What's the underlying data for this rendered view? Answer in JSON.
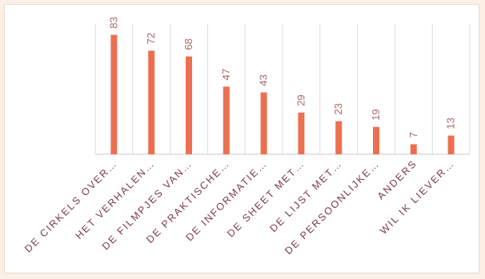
{
  "chart_data": {
    "type": "bar",
    "title": "",
    "xlabel": "",
    "ylabel": "",
    "ylim": [
      0,
      90
    ],
    "grid": "vertical category separators",
    "legend": "none",
    "categories": [
      "DE CIRKELS OVER…",
      "HET VERHALEN…",
      "DE FILMPJES VAN…",
      "DE PRAKTISCHE…",
      "DE INFORMATIE…",
      "DE SHEET MET…",
      "DE LIJST MET…",
      "DE PERSOONLIJKE…",
      "ANDERS",
      "WIL IK LIEVER…"
    ],
    "values": [
      83,
      72,
      68,
      47,
      43,
      29,
      23,
      19,
      7,
      13
    ],
    "colors": {
      "bar": "#ec6f4f",
      "data_label": "#a9686d",
      "tick_label": "#7a3a48",
      "gridline": "#dcdcdc",
      "axis": "#c8c8c8"
    }
  }
}
